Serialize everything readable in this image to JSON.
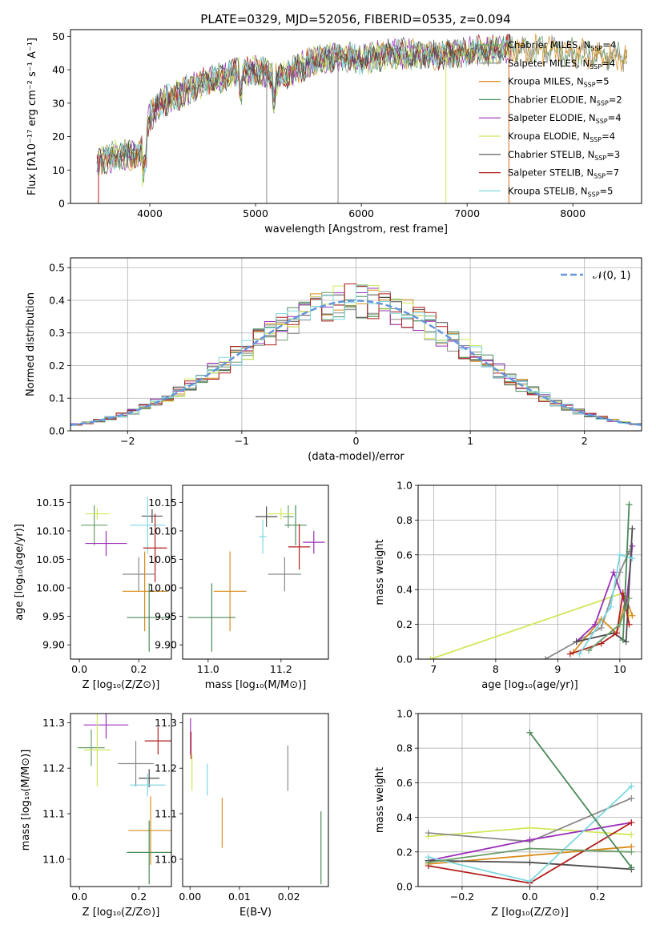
{
  "figure": {
    "title": "PLATE=0329, MJD=52056, FIBERID=0535, z=0.094"
  },
  "models": [
    {
      "name": "Chabrier MILES",
      "nssp": "4",
      "color": "#6b9e6b"
    },
    {
      "name": "Salpeter MILES",
      "nssp": "4",
      "color": "#8a8a8a"
    },
    {
      "name": "Kroupa MILES",
      "nssp": "5",
      "color": "#d98c1a"
    },
    {
      "name": "Chabrier ELODIE",
      "nssp": "2",
      "color": "#4a8a5a"
    },
    {
      "name": "Salpeter ELODIE",
      "nssp": "4",
      "color": "#9b30b8"
    },
    {
      "name": "Kroupa ELODIE",
      "nssp": "4",
      "color": "#cfe85a"
    },
    {
      "name": "Chabrier STELIB",
      "nssp": "3",
      "color": "#4d4d4d"
    },
    {
      "name": "Salpeter STELIB",
      "nssp": "7",
      "color": "#b21f1f"
    },
    {
      "name": "Kroupa STELIB",
      "nssp": "5",
      "color": "#7fd8e0"
    }
  ],
  "chart_data": [
    {
      "id": "spectrum",
      "type": "line",
      "xlabel": "wavelength [Angstrom, rest frame]",
      "ylabel": "Flux [fλ10⁻¹⁷ erg cm⁻² s⁻¹ A⁻¹]",
      "xlim": [
        3250,
        8650
      ],
      "ylim": [
        0,
        52
      ],
      "xticks": [
        "4000",
        "5000",
        "6000",
        "7000",
        "8000"
      ],
      "yticks": [
        "0",
        "10",
        "20",
        "30",
        "40",
        "50"
      ],
      "grid": false,
      "legend": "right",
      "continuum": {
        "x": [
          3500,
          3700,
          3900,
          4000,
          4100,
          4300,
          4500,
          4700,
          4900,
          5100,
          5200,
          5500,
          5800,
          6000,
          6300,
          6600,
          6900,
          7200,
          7400,
          7800,
          8000,
          8300,
          8500
        ],
        "y": [
          12,
          15,
          14,
          26,
          30,
          33,
          36,
          38,
          40,
          39,
          37,
          42,
          44,
          43,
          45,
          44,
          45,
          46,
          46,
          46,
          45,
          44,
          44
        ]
      }
    },
    {
      "id": "residual_hist",
      "type": "line",
      "xlabel": "(data-model)/error",
      "ylabel": "Normed distribution",
      "xlim": [
        -2.5,
        2.5
      ],
      "ylim": [
        0,
        0.53
      ],
      "xticks": [
        "-2",
        "-1",
        "0",
        "1",
        "2"
      ],
      "yticks": [
        "0.0",
        "0.1",
        "0.2",
        "0.3",
        "0.4",
        "0.5"
      ],
      "grid": true,
      "legend": "top-right",
      "legend_label": "𝒩(0, 1)",
      "normal_color": "#6495dc"
    },
    {
      "id": "age_vs_Z",
      "type": "scatter",
      "xlabel": "Z [log₁₀(Z/Z⊙)]",
      "ylabel": "age  [log₁₀(age/yr)]",
      "xlim": [
        -0.03,
        0.31
      ],
      "ylim": [
        9.875,
        10.18
      ],
      "xticks": [
        "0.0",
        "0.2"
      ],
      "yticks": [
        "9.90",
        "9.95",
        "10.00",
        "10.05",
        "10.10",
        "10.15"
      ],
      "points": [
        {
          "model": 0,
          "x": 0.05,
          "y": 10.11,
          "xerr": 0.045,
          "yerr": 0.035
        },
        {
          "model": 5,
          "x": 0.06,
          "y": 10.13,
          "xerr": 0.04,
          "yerr": 0.01
        },
        {
          "model": 4,
          "x": 0.09,
          "y": 10.078,
          "xerr": 0.07,
          "yerr": 0.022
        },
        {
          "model": 6,
          "x": 0.245,
          "y": 10.126,
          "xerr": 0.035,
          "yerr": 0.012
        },
        {
          "model": 8,
          "x": 0.23,
          "y": 10.11,
          "xerr": 0.06,
          "yerr": 0.05
        },
        {
          "model": 7,
          "x": 0.255,
          "y": 10.07,
          "xerr": 0.04,
          "yerr": 0.06
        },
        {
          "model": 1,
          "x": 0.2,
          "y": 10.024,
          "xerr": 0.055,
          "yerr": 0.03
        },
        {
          "model": 2,
          "x": 0.22,
          "y": 9.994,
          "xerr": 0.075,
          "yerr": 0.07
        },
        {
          "model": 3,
          "x": 0.235,
          "y": 9.948,
          "xerr": 0.075,
          "yerr": 0.06
        }
      ]
    },
    {
      "id": "age_vs_mass",
      "type": "scatter",
      "xlabel": "mass [log₁₀(M/M⊙)]",
      "ylabel": "",
      "xlim": [
        10.93,
        11.33
      ],
      "ylim": [
        9.875,
        10.18
      ],
      "xticks": [
        "11.0",
        "11.2"
      ],
      "yticks": [
        "9.90",
        "9.95",
        "10.00",
        "10.05",
        "10.10",
        "10.15"
      ],
      "points": [
        {
          "model": 0,
          "x": 11.22,
          "y": 10.125,
          "xerr": 0.015,
          "yerr": 0.02
        },
        {
          "model": 6,
          "x": 11.16,
          "y": 10.125,
          "xerr": 0.03,
          "yerr": 0.018
        },
        {
          "model": 5,
          "x": 11.2,
          "y": 10.13,
          "xerr": 0.035,
          "yerr": 0.01
        },
        {
          "model": 3,
          "x": 11.24,
          "y": 10.11,
          "xerr": 0.03,
          "yerr": 0.035
        },
        {
          "model": 8,
          "x": 11.15,
          "y": 10.09,
          "xerr": 0.01,
          "yerr": 0.03
        },
        {
          "model": 4,
          "x": 11.29,
          "y": 10.08,
          "xerr": 0.03,
          "yerr": 0.02
        },
        {
          "model": 7,
          "x": 11.25,
          "y": 10.072,
          "xerr": 0.03,
          "yerr": 0.04
        },
        {
          "model": 1,
          "x": 11.21,
          "y": 10.024,
          "xerr": 0.045,
          "yerr": 0.03
        },
        {
          "model": 2,
          "x": 11.06,
          "y": 9.994,
          "xerr": 0.045,
          "yerr": 0.07
        },
        {
          "model": 3,
          "x": 11.01,
          "y": 9.948,
          "xerr": 0.065,
          "yerr": 0.06
        }
      ]
    },
    {
      "id": "weight_vs_age",
      "type": "line",
      "xlabel": "age  [log₁₀(age/yr)]",
      "ylabel": "mass weight",
      "xlim": [
        6.75,
        10.35
      ],
      "ylim": [
        0,
        1
      ],
      "xticks": [
        "7",
        "8",
        "9",
        "10"
      ],
      "yticks": [
        "0.0",
        "0.2",
        "0.4",
        "0.6",
        "0.8",
        "1.0"
      ],
      "grid": true,
      "series": [
        {
          "model": 5,
          "x": [
            6.95,
            10.05,
            10.15
          ],
          "y": [
            0.0,
            0.38,
            0.25
          ]
        },
        {
          "model": 1,
          "x": [
            8.8,
            9.7,
            10.0,
            10.15
          ],
          "y": [
            0.0,
            0.18,
            0.5,
            0.62
          ]
        },
        {
          "model": 2,
          "x": [
            9.25,
            9.7,
            9.95,
            10.1,
            10.2
          ],
          "y": [
            0.04,
            0.23,
            0.15,
            0.35,
            0.25
          ]
        },
        {
          "model": 4,
          "x": [
            9.3,
            9.6,
            9.9,
            10.1,
            10.2
          ],
          "y": [
            0.1,
            0.2,
            0.5,
            0.3,
            0.65
          ]
        },
        {
          "model": 6,
          "x": [
            9.3,
            9.9,
            10.1,
            10.2
          ],
          "y": [
            0.1,
            0.15,
            0.1,
            0.75
          ]
        },
        {
          "model": 7,
          "x": [
            9.2,
            9.7,
            9.95,
            10.05,
            10.15
          ],
          "y": [
            0.03,
            0.09,
            0.15,
            0.38,
            0.2
          ]
        },
        {
          "model": 8,
          "x": [
            9.35,
            9.85,
            10.0,
            10.2
          ],
          "y": [
            0.03,
            0.3,
            0.6,
            0.58
          ]
        },
        {
          "model": 3,
          "x": [
            10.05,
            10.15
          ],
          "y": [
            0.11,
            0.89
          ]
        },
        {
          "model": 0,
          "x": [
            9.5,
            10.0,
            10.15
          ],
          "y": [
            0.05,
            0.2,
            0.35
          ]
        }
      ]
    },
    {
      "id": "mass_vs_Z",
      "type": "scatter",
      "xlabel": "Z [log₁₀(Z/Z⊙)]",
      "ylabel": "mass [log₁₀(M/M⊙)]",
      "xlim": [
        -0.03,
        0.31
      ],
      "ylim": [
        10.94,
        11.32
      ],
      "xticks": [
        "0.0",
        "0.2"
      ],
      "yticks": [
        "11.0",
        "11.1",
        "11.2",
        "11.3"
      ],
      "points": [
        {
          "model": 0,
          "x": 0.04,
          "y": 11.245,
          "xerr": 0.045,
          "yerr": 0.04
        },
        {
          "model": 4,
          "x": 0.09,
          "y": 11.295,
          "xerr": 0.075,
          "yerr": 0.03
        },
        {
          "model": 5,
          "x": 0.06,
          "y": 11.24,
          "xerr": 0.045,
          "yerr": 0.08
        },
        {
          "model": 7,
          "x": 0.265,
          "y": 11.26,
          "xerr": 0.045,
          "yerr": 0.03
        },
        {
          "model": 1,
          "x": 0.19,
          "y": 11.21,
          "xerr": 0.06,
          "yerr": 0.05
        },
        {
          "model": 6,
          "x": 0.235,
          "y": 11.178,
          "xerr": 0.035,
          "yerr": 0.02
        },
        {
          "model": 8,
          "x": 0.23,
          "y": 11.163,
          "xerr": 0.06,
          "yerr": 0.025
        },
        {
          "model": 2,
          "x": 0.24,
          "y": 11.063,
          "xerr": 0.075,
          "yerr": 0.075
        },
        {
          "model": 3,
          "x": 0.235,
          "y": 11.015,
          "xerr": 0.075,
          "yerr": 0.07
        }
      ]
    },
    {
      "id": "mass_vs_ebv",
      "type": "scatter",
      "xlabel": "E(B-V)",
      "ylabel": "",
      "xlim": [
        -0.0015,
        0.028
      ],
      "ylim": [
        10.94,
        11.32
      ],
      "xticks": [
        "0.00",
        "0.01",
        "0.02"
      ],
      "yticks": [
        "11.0",
        "11.1",
        "11.2",
        "11.3"
      ],
      "points": [
        {
          "model": 4,
          "x": 0.0001,
          "y": 11.27,
          "xerr": 0.0,
          "yerr": 0.04
        },
        {
          "model": 7,
          "x": 0.0002,
          "y": 11.25,
          "xerr": 0.0,
          "yerr": 0.03
        },
        {
          "model": 5,
          "x": 0.0004,
          "y": 11.19,
          "xerr": 0.0,
          "yerr": 0.04
        },
        {
          "model": 8,
          "x": 0.0035,
          "y": 11.175,
          "xerr": 0.0,
          "yerr": 0.035
        },
        {
          "model": 2,
          "x": 0.0065,
          "y": 11.08,
          "xerr": 0.0,
          "yerr": 0.055
        },
        {
          "model": 1,
          "x": 0.0198,
          "y": 11.2,
          "xerr": 0.0,
          "yerr": 0.05
        },
        {
          "model": 3,
          "x": 0.0265,
          "y": 11.025,
          "xerr": 0.0,
          "yerr": 0.08
        }
      ]
    },
    {
      "id": "weight_vs_Z",
      "type": "line",
      "xlabel": "Z [log₁₀(Z/Z⊙)]",
      "ylabel": "mass weight",
      "xlim": [
        -0.33,
        0.33
      ],
      "ylim": [
        0,
        1
      ],
      "xticks": [
        "-0.2",
        "0.0",
        "0.2"
      ],
      "yticks": [
        "0.0",
        "0.2",
        "0.4",
        "0.6",
        "0.8",
        "1.0"
      ],
      "grid": true,
      "series": [
        {
          "model": 5,
          "x": [
            -0.3,
            0.0,
            0.3
          ],
          "y": [
            0.29,
            0.34,
            0.3
          ]
        },
        {
          "model": 1,
          "x": [
            -0.3,
            0.0,
            0.3
          ],
          "y": [
            0.31,
            0.26,
            0.51
          ]
        },
        {
          "model": 4,
          "x": [
            -0.3,
            0.0,
            0.3
          ],
          "y": [
            0.15,
            0.27,
            0.37
          ]
        },
        {
          "model": 2,
          "x": [
            -0.3,
            0.0,
            0.3
          ],
          "y": [
            0.13,
            0.18,
            0.23
          ]
        },
        {
          "model": 6,
          "x": [
            -0.3,
            0.0,
            0.3
          ],
          "y": [
            0.15,
            0.14,
            0.1
          ]
        },
        {
          "model": 7,
          "x": [
            -0.3,
            0.0,
            0.3
          ],
          "y": [
            0.12,
            0.02,
            0.37
          ]
        },
        {
          "model": 8,
          "x": [
            -0.3,
            0.0,
            0.3
          ],
          "y": [
            0.17,
            0.03,
            0.58
          ]
        },
        {
          "model": 3,
          "x": [
            0.0,
            0.3
          ],
          "y": [
            0.89,
            0.11
          ]
        },
        {
          "model": 0,
          "x": [
            -0.3,
            0.0,
            0.3
          ],
          "y": [
            0.14,
            0.22,
            0.2
          ]
        }
      ]
    }
  ]
}
